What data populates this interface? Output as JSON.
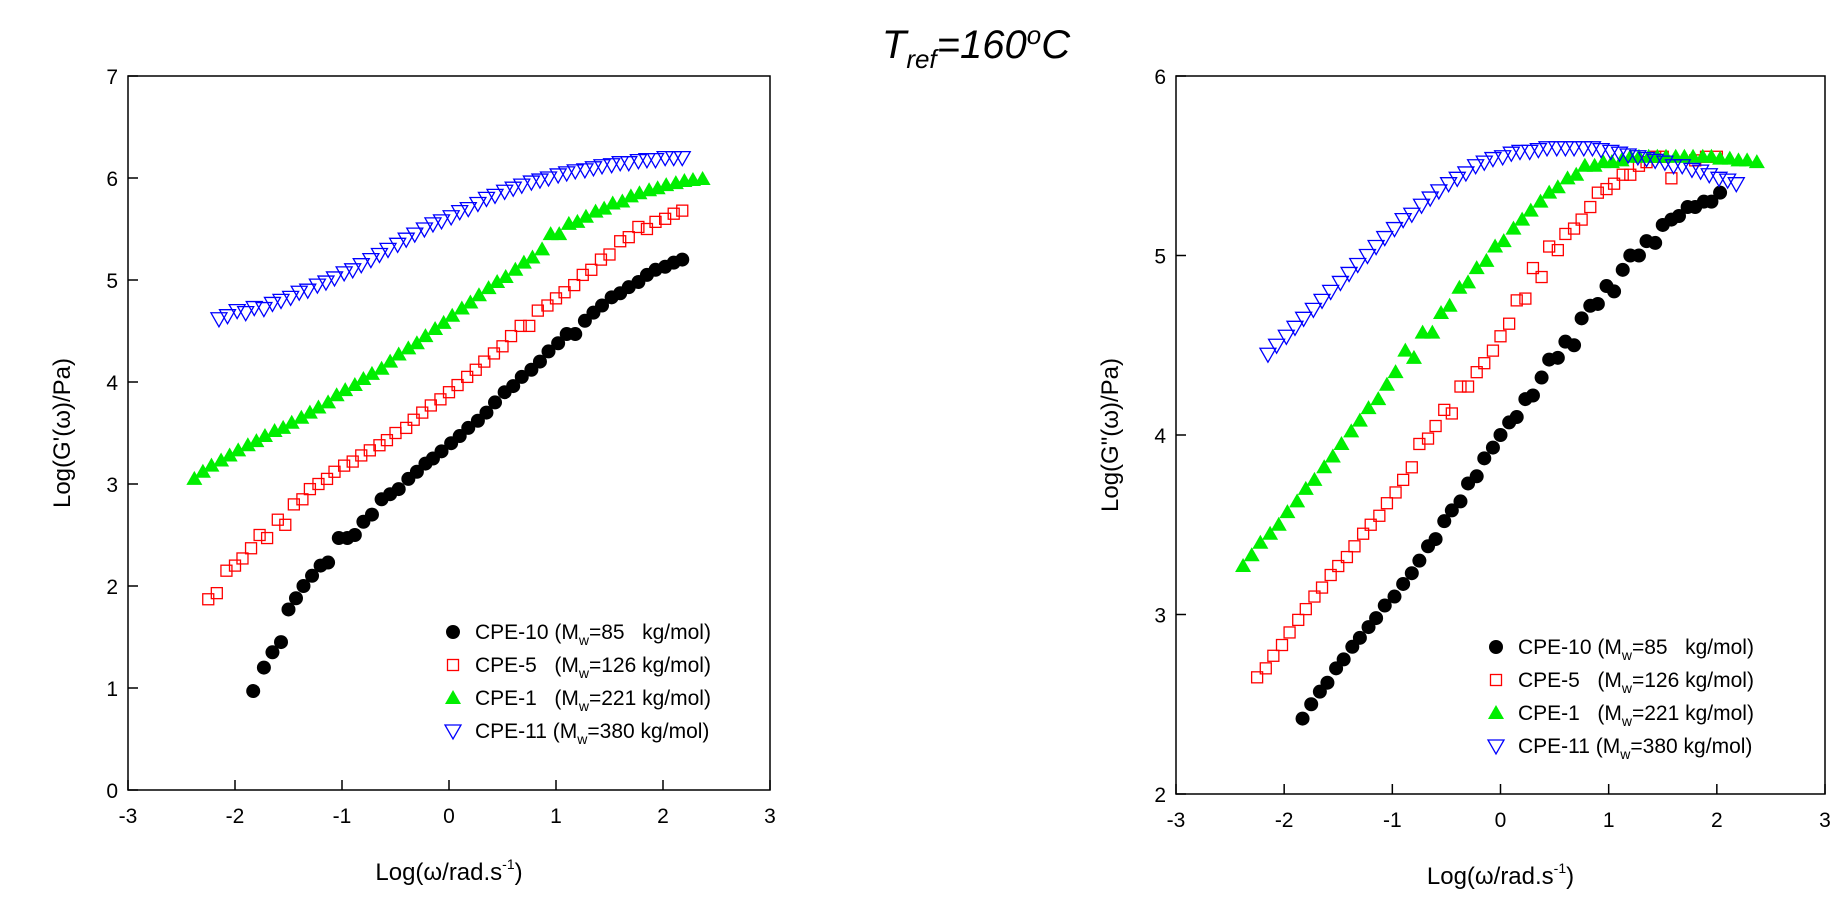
{
  "title": [
    "T",
    "ref",
    "=160",
    "o",
    "C"
  ],
  "chart_data": [
    {
      "type": "scatter",
      "ylabel": "Log(G'(ω)/Pa)",
      "xlabel": [
        "Log(ω/rad.s",
        "-1",
        ")"
      ],
      "xlim": [
        -3,
        3
      ],
      "ylim": [
        0,
        7
      ],
      "xticks": [
        -3,
        -2,
        -1,
        0,
        1,
        2,
        3
      ],
      "yticks": [
        0,
        1,
        2,
        3,
        4,
        5,
        6,
        7
      ],
      "series": [
        {
          "name": [
            "CPE-10 (M",
            "w",
            "=85   kg/mol)"
          ],
          "color": "#000000",
          "marker": "circle",
          "x": [
            -1.83,
            -1.73,
            -1.65,
            -1.57,
            -1.5,
            -1.43,
            -1.36,
            -1.28,
            -1.2,
            -1.13,
            -1.03,
            -0.95,
            -0.88,
            -0.8,
            -0.72,
            -0.63,
            -0.55,
            -0.47,
            -0.38,
            -0.3,
            -0.22,
            -0.15,
            -0.07,
            0.02,
            0.1,
            0.18,
            0.27,
            0.35,
            0.43,
            0.52,
            0.6,
            0.68,
            0.77,
            0.85,
            0.93,
            1.02,
            1.1,
            1.18,
            1.27,
            1.35,
            1.43,
            1.52,
            1.6,
            1.68,
            1.77,
            1.85,
            1.93,
            2.02,
            2.1,
            2.18
          ],
          "values": [
            0.97,
            1.2,
            1.35,
            1.45,
            1.77,
            1.88,
            2.0,
            2.1,
            2.2,
            2.23,
            2.47,
            2.47,
            2.5,
            2.63,
            2.7,
            2.85,
            2.9,
            2.95,
            3.05,
            3.12,
            3.2,
            3.25,
            3.32,
            3.4,
            3.47,
            3.55,
            3.62,
            3.7,
            3.8,
            3.9,
            3.96,
            4.05,
            4.12,
            4.2,
            4.3,
            4.38,
            4.47,
            4.47,
            4.6,
            4.68,
            4.75,
            4.83,
            4.87,
            4.93,
            4.98,
            5.05,
            5.1,
            5.13,
            5.17,
            5.2
          ]
        },
        {
          "name": [
            "CPE-5   (M",
            "w",
            "=126 kg/mol)"
          ],
          "color": "#ff0000",
          "marker": "square",
          "x": [
            -2.25,
            -2.17,
            -2.08,
            -2.0,
            -1.93,
            -1.85,
            -1.77,
            -1.7,
            -1.6,
            -1.53,
            -1.45,
            -1.37,
            -1.3,
            -1.22,
            -1.14,
            -1.07,
            -0.98,
            -0.9,
            -0.82,
            -0.74,
            -0.65,
            -0.58,
            -0.5,
            -0.4,
            -0.33,
            -0.25,
            -0.17,
            -0.08,
            0.0,
            0.08,
            0.17,
            0.25,
            0.33,
            0.42,
            0.5,
            0.58,
            0.67,
            0.75,
            0.83,
            0.92,
            1.0,
            1.08,
            1.17,
            1.25,
            1.33,
            1.42,
            1.5,
            1.6,
            1.68,
            1.77,
            1.85,
            1.93,
            2.02,
            2.1,
            2.18
          ],
          "values": [
            1.87,
            1.93,
            2.15,
            2.2,
            2.27,
            2.37,
            2.5,
            2.47,
            2.65,
            2.6,
            2.8,
            2.85,
            2.95,
            3.0,
            3.05,
            3.12,
            3.18,
            3.22,
            3.28,
            3.33,
            3.38,
            3.43,
            3.5,
            3.55,
            3.63,
            3.7,
            3.77,
            3.83,
            3.9,
            3.97,
            4.05,
            4.12,
            4.2,
            4.28,
            4.35,
            4.45,
            4.55,
            4.55,
            4.7,
            4.75,
            4.82,
            4.88,
            4.95,
            5.05,
            5.1,
            5.2,
            5.25,
            5.38,
            5.42,
            5.52,
            5.5,
            5.57,
            5.6,
            5.65,
            5.68
          ]
        },
        {
          "name": [
            "CPE-1   (M",
            "w",
            "=221 kg/mol)"
          ],
          "color": "#00ee00",
          "marker": "triangle",
          "x": [
            -2.38,
            -2.3,
            -2.22,
            -2.13,
            -2.05,
            -1.97,
            -1.88,
            -1.8,
            -1.72,
            -1.63,
            -1.55,
            -1.47,
            -1.38,
            -1.3,
            -1.22,
            -1.13,
            -1.05,
            -0.97,
            -0.88,
            -0.8,
            -0.72,
            -0.63,
            -0.55,
            -0.47,
            -0.38,
            -0.3,
            -0.22,
            -0.13,
            -0.05,
            0.03,
            0.12,
            0.2,
            0.28,
            0.37,
            0.45,
            0.53,
            0.62,
            0.7,
            0.78,
            0.87,
            0.95,
            1.03,
            1.12,
            1.2,
            1.28,
            1.37,
            1.45,
            1.53,
            1.62,
            1.7,
            1.78,
            1.87,
            1.95,
            2.03,
            2.12,
            2.2,
            2.28,
            2.37
          ],
          "values": [
            3.05,
            3.12,
            3.18,
            3.23,
            3.28,
            3.33,
            3.38,
            3.42,
            3.47,
            3.52,
            3.55,
            3.6,
            3.65,
            3.7,
            3.75,
            3.8,
            3.87,
            3.92,
            3.97,
            4.03,
            4.08,
            4.13,
            4.2,
            4.27,
            4.33,
            4.38,
            4.45,
            4.52,
            4.58,
            4.65,
            4.72,
            4.78,
            4.85,
            4.92,
            4.98,
            5.03,
            5.1,
            5.17,
            5.22,
            5.3,
            5.45,
            5.45,
            5.55,
            5.57,
            5.62,
            5.67,
            5.7,
            5.75,
            5.77,
            5.82,
            5.85,
            5.88,
            5.9,
            5.93,
            5.95,
            5.97,
            5.98,
            5.99
          ]
        },
        {
          "name": [
            "CPE-11 (M",
            "w",
            "=380 kg/mol)"
          ],
          "color": "#0000ff",
          "marker": "triangle-down",
          "x": [
            -2.15,
            -2.07,
            -1.98,
            -1.9,
            -1.82,
            -1.73,
            -1.65,
            -1.57,
            -1.48,
            -1.4,
            -1.32,
            -1.23,
            -1.15,
            -1.07,
            -0.98,
            -0.9,
            -0.82,
            -0.73,
            -0.65,
            -0.57,
            -0.48,
            -0.4,
            -0.32,
            -0.23,
            -0.15,
            -0.07,
            0.02,
            0.1,
            0.18,
            0.27,
            0.35,
            0.43,
            0.52,
            0.6,
            0.68,
            0.77,
            0.85,
            0.93,
            1.02,
            1.1,
            1.18,
            1.27,
            1.35,
            1.43,
            1.52,
            1.6,
            1.68,
            1.77,
            1.85,
            1.93,
            2.02,
            2.1,
            2.18
          ],
          "values": [
            4.62,
            4.65,
            4.7,
            4.68,
            4.73,
            4.72,
            4.77,
            4.8,
            4.83,
            4.88,
            4.9,
            4.95,
            4.98,
            5.02,
            5.07,
            5.1,
            5.15,
            5.2,
            5.25,
            5.3,
            5.35,
            5.4,
            5.45,
            5.5,
            5.55,
            5.58,
            5.62,
            5.67,
            5.7,
            5.75,
            5.8,
            5.83,
            5.87,
            5.9,
            5.93,
            5.96,
            5.98,
            6.0,
            6.03,
            6.05,
            6.07,
            6.08,
            6.1,
            6.12,
            6.13,
            6.15,
            6.15,
            6.17,
            6.18,
            6.18,
            6.2,
            6.2,
            6.2
          ]
        }
      ]
    },
    {
      "type": "scatter",
      "ylabel": "Log(G\"(ω)/Pa)",
      "xlabel": [
        "Log(ω/rad.s",
        "-1",
        ")"
      ],
      "xlim": [
        -3,
        3
      ],
      "ylim": [
        2,
        6
      ],
      "xticks": [
        -3,
        -2,
        -1,
        0,
        1,
        2,
        3
      ],
      "yticks": [
        2,
        3,
        4,
        5,
        6
      ],
      "series": [
        {
          "name": [
            "CPE-10 (M",
            "w",
            "=85   kg/mol)"
          ],
          "color": "#000000",
          "marker": "circle",
          "x": [
            -1.83,
            -1.75,
            -1.67,
            -1.6,
            -1.52,
            -1.45,
            -1.37,
            -1.3,
            -1.22,
            -1.15,
            -1.07,
            -0.98,
            -0.9,
            -0.82,
            -0.75,
            -0.67,
            -0.6,
            -0.52,
            -0.45,
            -0.37,
            -0.3,
            -0.22,
            -0.15,
            -0.07,
            0.0,
            0.08,
            0.15,
            0.23,
            0.3,
            0.38,
            0.45,
            0.53,
            0.6,
            0.68,
            0.75,
            0.83,
            0.9,
            0.98,
            1.05,
            1.13,
            1.2,
            1.28,
            1.35,
            1.43,
            1.5,
            1.58,
            1.65,
            1.73,
            1.8,
            1.88,
            1.95,
            2.03
          ],
          "values": [
            2.42,
            2.5,
            2.57,
            2.62,
            2.7,
            2.75,
            2.82,
            2.87,
            2.93,
            2.98,
            3.05,
            3.1,
            3.17,
            3.23,
            3.3,
            3.38,
            3.42,
            3.52,
            3.58,
            3.63,
            3.73,
            3.77,
            3.87,
            3.93,
            4.0,
            4.07,
            4.1,
            4.2,
            4.22,
            4.32,
            4.42,
            4.43,
            4.52,
            4.5,
            4.65,
            4.72,
            4.73,
            4.83,
            4.8,
            4.92,
            5.0,
            5.0,
            5.08,
            5.07,
            5.17,
            5.2,
            5.22,
            5.27,
            5.27,
            5.3,
            5.3,
            5.35
          ]
        },
        {
          "name": [
            "CPE-5   (M",
            "w",
            "=126 kg/mol)"
          ],
          "color": "#ff0000",
          "marker": "square",
          "x": [
            -2.25,
            -2.17,
            -2.1,
            -2.02,
            -1.95,
            -1.87,
            -1.8,
            -1.72,
            -1.65,
            -1.57,
            -1.5,
            -1.42,
            -1.35,
            -1.27,
            -1.2,
            -1.12,
            -1.05,
            -0.97,
            -0.9,
            -0.82,
            -0.75,
            -0.67,
            -0.6,
            -0.52,
            -0.45,
            -0.37,
            -0.3,
            -0.22,
            -0.15,
            -0.07,
            0.0,
            0.08,
            0.15,
            0.23,
            0.3,
            0.38,
            0.45,
            0.53,
            0.6,
            0.68,
            0.75,
            0.83,
            0.9,
            0.98,
            1.05,
            1.13,
            1.2,
            1.28,
            1.35,
            1.43,
            1.5,
            1.58,
            1.8,
            1.9,
            2.0
          ],
          "values": [
            2.65,
            2.7,
            2.77,
            2.83,
            2.9,
            2.97,
            3.03,
            3.1,
            3.15,
            3.22,
            3.27,
            3.32,
            3.38,
            3.45,
            3.5,
            3.55,
            3.62,
            3.68,
            3.75,
            3.82,
            3.95,
            3.98,
            4.05,
            4.14,
            4.12,
            4.27,
            4.27,
            4.35,
            4.4,
            4.47,
            4.55,
            4.62,
            4.75,
            4.76,
            4.93,
            4.88,
            5.05,
            5.03,
            5.12,
            5.15,
            5.2,
            5.27,
            5.35,
            5.37,
            5.4,
            5.45,
            5.45,
            5.5,
            5.52,
            5.55,
            5.55,
            5.43,
            5.53,
            5.55,
            5.55
          ]
        },
        {
          "name": [
            "CPE-1   (M",
            "w",
            "=221 kg/mol)"
          ],
          "color": "#00ee00",
          "marker": "triangle",
          "x": [
            -2.38,
            -2.3,
            -2.22,
            -2.13,
            -2.05,
            -1.97,
            -1.88,
            -1.8,
            -1.72,
            -1.63,
            -1.55,
            -1.47,
            -1.38,
            -1.3,
            -1.22,
            -1.13,
            -1.05,
            -0.97,
            -0.88,
            -0.8,
            -0.72,
            -0.63,
            -0.55,
            -0.47,
            -0.38,
            -0.3,
            -0.22,
            -0.13,
            -0.05,
            0.03,
            0.12,
            0.2,
            0.28,
            0.37,
            0.45,
            0.53,
            0.62,
            0.7,
            0.78,
            0.87,
            0.95,
            1.03,
            1.12,
            1.2,
            1.28,
            1.37,
            1.45,
            1.53,
            1.62,
            1.7,
            1.78,
            1.87,
            1.95,
            2.03,
            2.12,
            2.2,
            2.28,
            2.37
          ],
          "values": [
            3.27,
            3.33,
            3.4,
            3.45,
            3.5,
            3.57,
            3.63,
            3.7,
            3.75,
            3.82,
            3.88,
            3.95,
            4.02,
            4.08,
            4.15,
            4.2,
            4.28,
            4.35,
            4.47,
            4.43,
            4.57,
            4.57,
            4.68,
            4.72,
            4.82,
            4.85,
            4.93,
            4.97,
            5.05,
            5.08,
            5.15,
            5.2,
            5.25,
            5.3,
            5.35,
            5.38,
            5.43,
            5.45,
            5.5,
            5.5,
            5.52,
            5.52,
            5.53,
            5.55,
            5.55,
            5.55,
            5.55,
            5.55,
            5.55,
            5.55,
            5.55,
            5.55,
            5.55,
            5.54,
            5.54,
            5.53,
            5.53,
            5.52
          ]
        },
        {
          "name": [
            "CPE-11 (M",
            "w",
            "=380 kg/mol)"
          ],
          "color": "#0000ff",
          "marker": "triangle-down",
          "x": [
            -2.15,
            -2.07,
            -1.98,
            -1.9,
            -1.82,
            -1.73,
            -1.65,
            -1.57,
            -1.48,
            -1.4,
            -1.32,
            -1.23,
            -1.15,
            -1.07,
            -0.98,
            -0.9,
            -0.82,
            -0.73,
            -0.65,
            -0.57,
            -0.48,
            -0.4,
            -0.32,
            -0.23,
            -0.15,
            -0.07,
            0.02,
            0.1,
            0.18,
            0.27,
            0.35,
            0.43,
            0.52,
            0.6,
            0.68,
            0.77,
            0.85,
            0.93,
            1.02,
            1.1,
            1.18,
            1.27,
            1.35,
            1.43,
            1.52,
            1.6,
            1.68,
            1.77,
            1.85,
            1.93,
            2.02,
            2.1,
            2.18
          ],
          "values": [
            4.45,
            4.5,
            4.55,
            4.6,
            4.65,
            4.7,
            4.75,
            4.8,
            4.85,
            4.9,
            4.95,
            5.0,
            5.05,
            5.1,
            5.15,
            5.2,
            5.23,
            5.28,
            5.32,
            5.36,
            5.4,
            5.43,
            5.46,
            5.5,
            5.52,
            5.54,
            5.55,
            5.57,
            5.58,
            5.58,
            5.59,
            5.6,
            5.6,
            5.6,
            5.6,
            5.6,
            5.6,
            5.59,
            5.58,
            5.57,
            5.56,
            5.55,
            5.54,
            5.53,
            5.52,
            5.5,
            5.5,
            5.48,
            5.47,
            5.45,
            5.43,
            5.42,
            5.4
          ]
        }
      ]
    }
  ]
}
